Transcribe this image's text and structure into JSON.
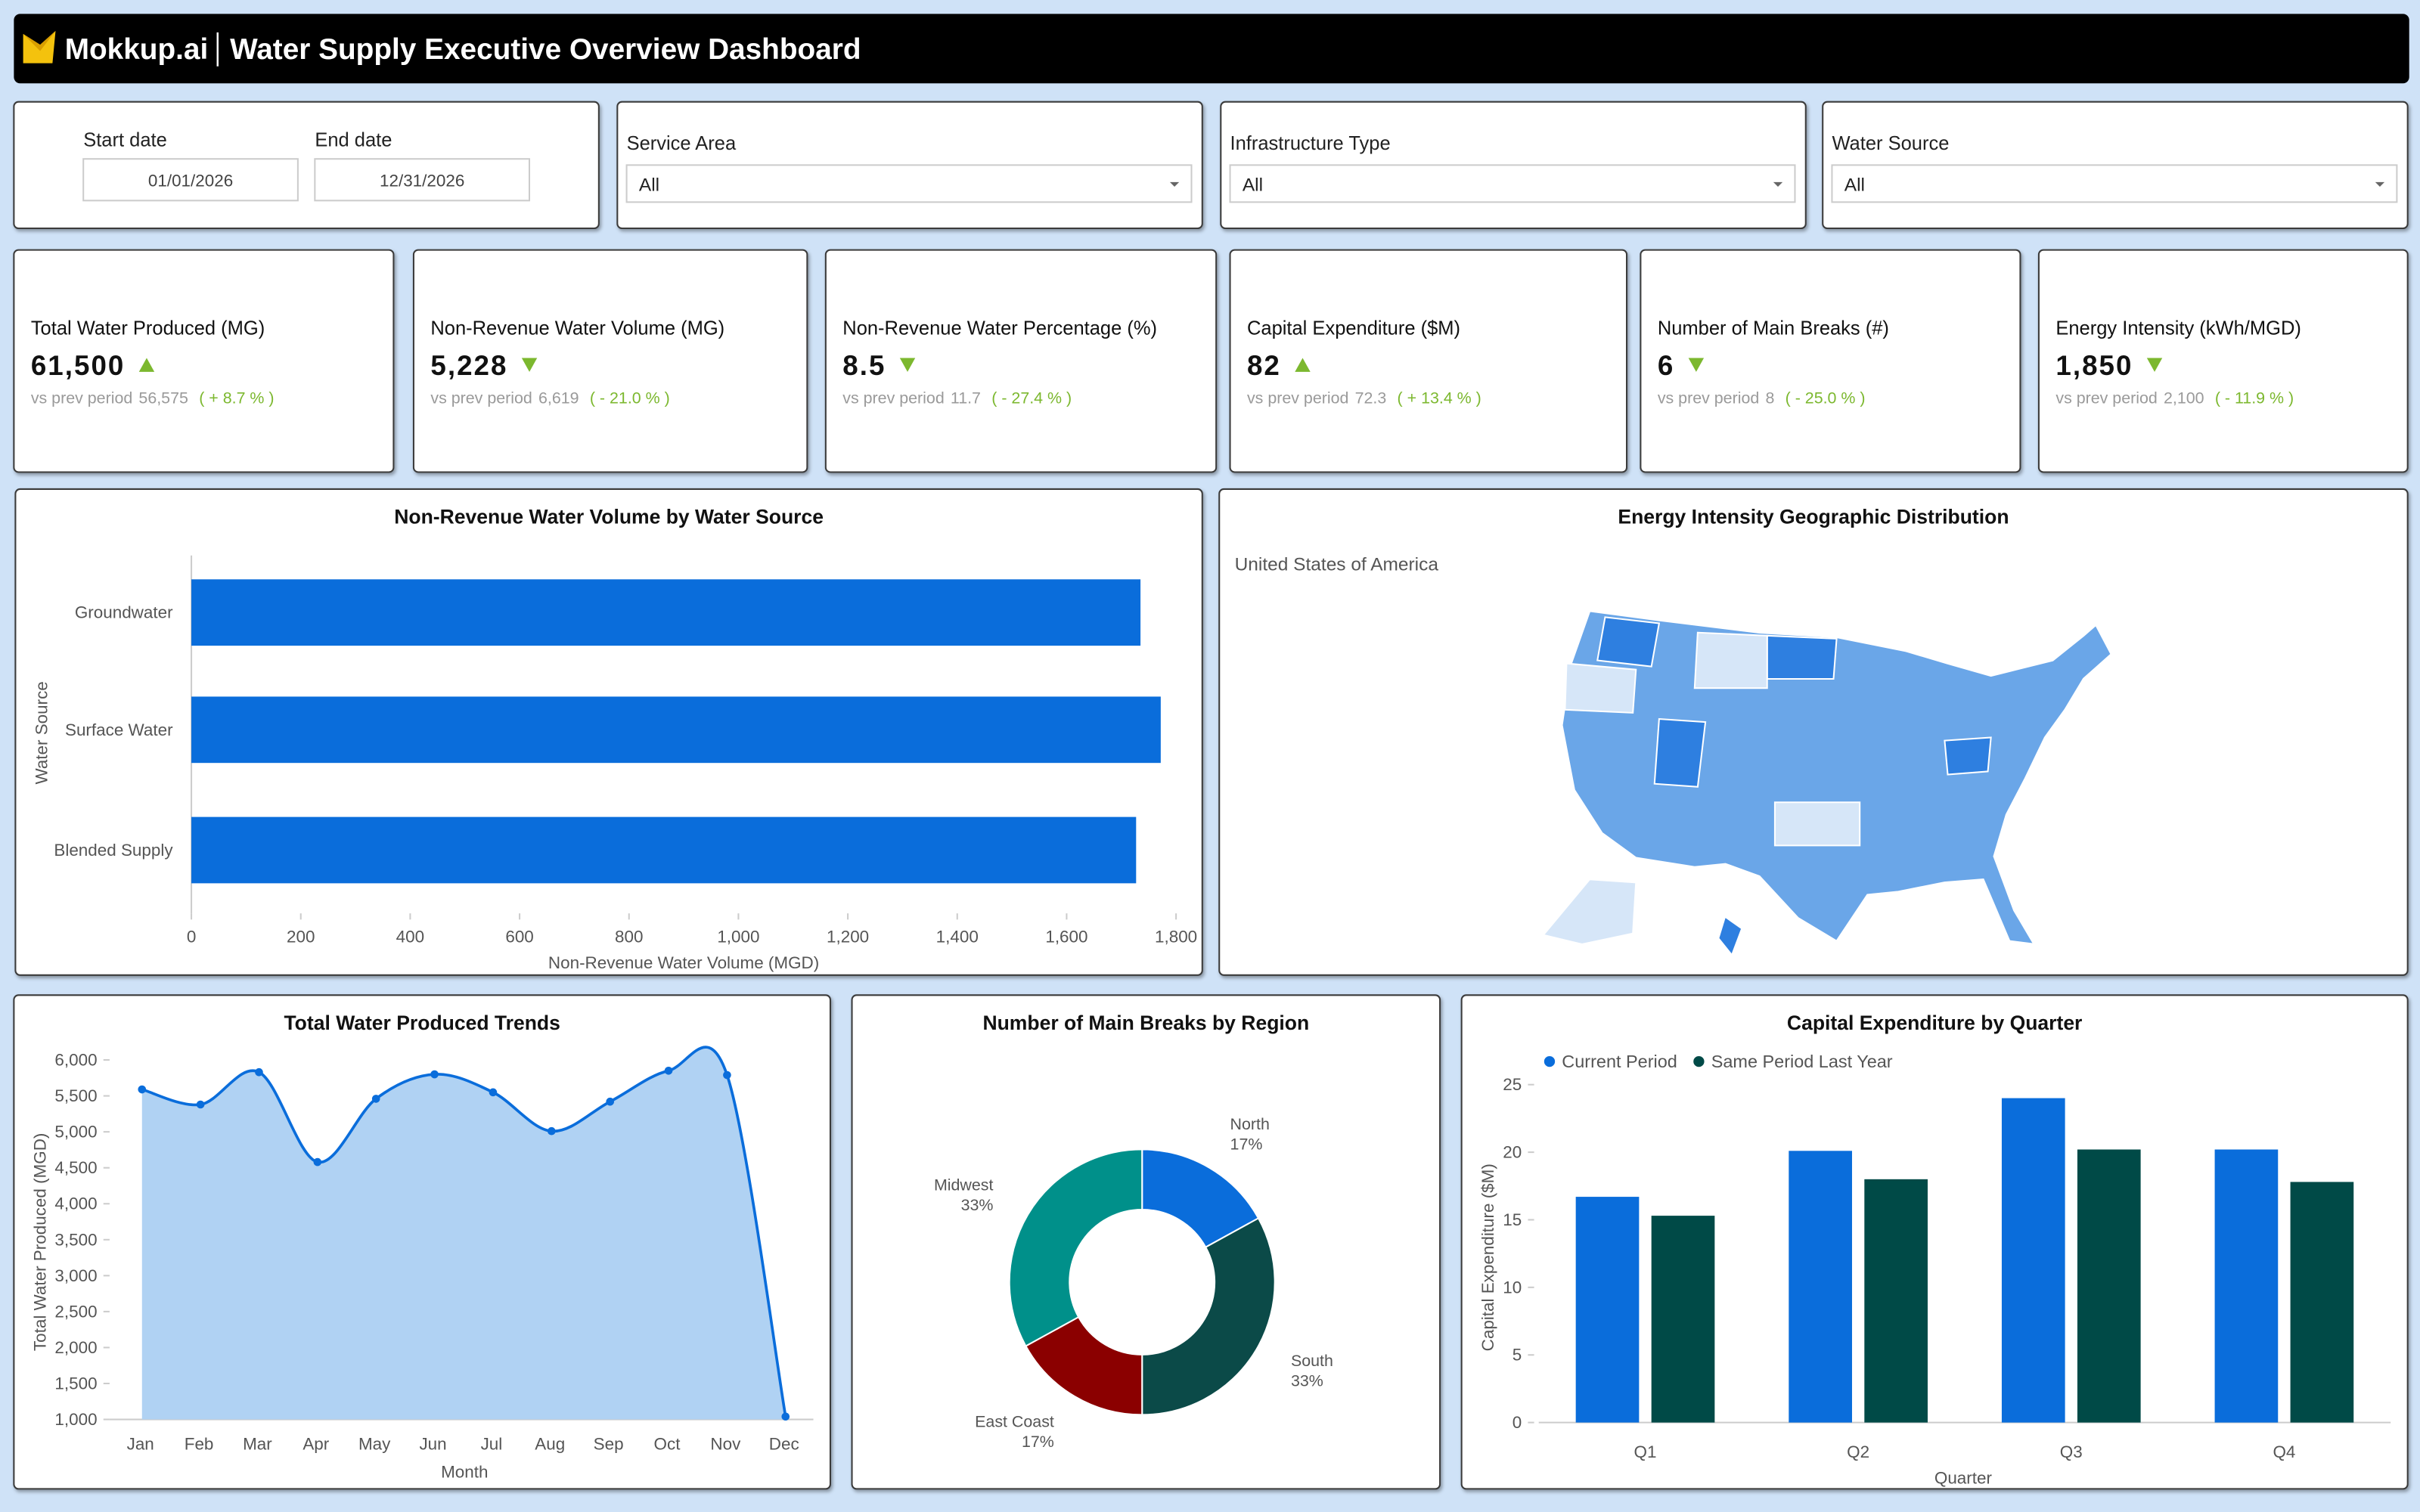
{
  "header": {
    "logo": "Mokkup.ai",
    "title": "Water Supply Executive Overview Dashboard"
  },
  "filters": {
    "start_label": "Start date",
    "start_value": "01/01/2026",
    "end_label": "End date",
    "end_value": "12/31/2026",
    "dropdowns": [
      {
        "label": "Service Area",
        "value": "All"
      },
      {
        "label": "Infrastructure Type",
        "value": "All"
      },
      {
        "label": "Water Source",
        "value": "All"
      }
    ]
  },
  "kpis": [
    {
      "title": "Total Water Produced (MG)",
      "value": "61,500",
      "trend": "up",
      "compare_label": "vs prev period",
      "previous": "56,575",
      "change": "( + 8.7 % )"
    },
    {
      "title": "Non-Revenue Water Volume (MG)",
      "value": "5,228",
      "trend": "down",
      "compare_label": "vs prev period",
      "previous": "6,619",
      "change": "( - 21.0 % )"
    },
    {
      "title": "Non-Revenue Water Percentage (%)",
      "value": "8.5",
      "trend": "down",
      "compare_label": "vs prev period",
      "previous": "11.7",
      "change": "( - 27.4 % )"
    },
    {
      "title": "Capital Expenditure ($M)",
      "value": "82",
      "trend": "up",
      "compare_label": "vs prev period",
      "previous": "72.3",
      "change": "( + 13.4 % )"
    },
    {
      "title": "Number of Main Breaks (#)",
      "value": "6",
      "trend": "down",
      "compare_label": "vs prev period",
      "previous": "8",
      "change": "( - 25.0 % )"
    },
    {
      "title": "Energy Intensity (kWh/MGD)",
      "value": "1,850",
      "trend": "down",
      "compare_label": "vs prev period",
      "previous": "2,100",
      "change": "( - 11.9 % )"
    }
  ],
  "chart_data": [
    {
      "type": "hbar",
      "title": "Non-Revenue Water Volume by Water Source",
      "categories": [
        "Groundwater",
        "Surface Water",
        "Blended Supply"
      ],
      "values": [
        1735,
        1772,
        1727
      ],
      "color": "#0a6ddb",
      "xlim": [
        0,
        1800
      ],
      "xticks": [
        0,
        200,
        400,
        600,
        800,
        {
          "value": 1000,
          "label": "1,000"
        },
        {
          "value": 1200,
          "label": "1,200"
        },
        {
          "value": 1400,
          "label": "1,400"
        },
        {
          "value": 1600,
          "label": "1,600"
        },
        {
          "value": 1800,
          "label": "1,800"
        }
      ],
      "xlabel": "Non-Revenue Water Volume (MGD)",
      "ylabel": "Water Source"
    },
    {
      "type": "map",
      "title": "Energy Intensity Geographic Distribution",
      "region": "United States of America",
      "color": "#6aa6e8"
    },
    {
      "type": "area",
      "title": "Total Water Produced Trends",
      "categories": [
        "Jan",
        "Feb",
        "Mar",
        "Apr",
        "May",
        "Jun",
        "Jul",
        "Aug",
        "Sep",
        "Oct",
        "Nov",
        "Dec"
      ],
      "values": [
        5590,
        5380,
        5830,
        4580,
        5460,
        5800,
        5550,
        5010,
        5420,
        5850,
        5790,
        1040
      ],
      "color": "#0a6ddb",
      "fill": "#b0d2f3",
      "ylim": [
        1000,
        6000
      ],
      "yticks": [
        {
          "value": 1000,
          "label": "1,000"
        },
        {
          "value": 1500,
          "label": "1,500"
        },
        {
          "value": 2000,
          "label": "2,000"
        },
        {
          "value": 2500,
          "label": "2,500"
        },
        {
          "value": 3000,
          "label": "3,000"
        },
        {
          "value": 3500,
          "label": "3,500"
        },
        {
          "value": 4000,
          "label": "4,000"
        },
        {
          "value": 4500,
          "label": "4,500"
        },
        {
          "value": 5000,
          "label": "5,000"
        },
        {
          "value": 5500,
          "label": "5,500"
        },
        {
          "value": 6000,
          "label": "6,000"
        }
      ],
      "xlabel": "Month",
      "ylabel": "Total Water Produced (MGD)"
    },
    {
      "type": "donut",
      "title": "Number of Main Breaks by Region",
      "categories": [
        "North",
        "South",
        "East Coast",
        "Midwest"
      ],
      "values": [
        17,
        33,
        17,
        33
      ],
      "value_labels": [
        "17%",
        "33%",
        "17%",
        "33%"
      ],
      "colors": [
        "#0a6ddb",
        "#0b4a48",
        "#8b0000",
        "#00908a"
      ]
    },
    {
      "type": "grouped_bar",
      "title": "Capital Expenditure by Quarter",
      "categories": [
        "Q1",
        "Q2",
        "Q3",
        "Q4"
      ],
      "series": [
        {
          "name": "Current Period",
          "color": "#0a6ddb",
          "values": [
            16.7,
            20.1,
            24.0,
            20.2
          ]
        },
        {
          "name": "Same Period Last Year",
          "color": "#004a47",
          "values": [
            15.3,
            18.0,
            20.2,
            17.8
          ]
        }
      ],
      "ylim": [
        0,
        25
      ],
      "yticks": [
        0,
        5,
        10,
        15,
        20,
        25
      ],
      "legend": "top-left",
      "xlabel": "Quarter",
      "ylabel": "Capital Expenditure ($M)"
    }
  ]
}
